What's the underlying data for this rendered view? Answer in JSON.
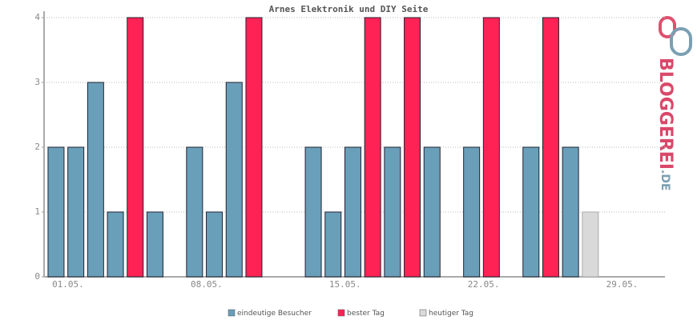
{
  "chart_data": {
    "type": "bar",
    "title": "Arnes Elektronik und DIY Seite",
    "categories": [
      "01.05.",
      null,
      null,
      null,
      null,
      null,
      null,
      "08.05.",
      null,
      null,
      null,
      null,
      null,
      null,
      "15.05.",
      null,
      null,
      null,
      null,
      null,
      null,
      "22.05.",
      null,
      null,
      null,
      null,
      null,
      null,
      "29.05.",
      null,
      null
    ],
    "series": [
      {
        "name": "eindeutige Besucher",
        "color": "#6a9fb9",
        "values": [
          2,
          2,
          3,
          1,
          null,
          1,
          0,
          2,
          1,
          3,
          null,
          0,
          0,
          2,
          1,
          2,
          null,
          2,
          null,
          2,
          0,
          2,
          null,
          0,
          2,
          null,
          2,
          null,
          0,
          0,
          0
        ]
      },
      {
        "name": "bester Tag",
        "color": "#ff2255",
        "values": [
          null,
          null,
          null,
          null,
          4,
          null,
          null,
          null,
          null,
          null,
          4,
          null,
          null,
          null,
          null,
          null,
          4,
          null,
          4,
          null,
          null,
          null,
          4,
          null,
          null,
          4,
          null,
          null,
          null,
          null,
          null
        ]
      },
      {
        "name": "heutiger Tag",
        "color": "#d9d9d9",
        "values": [
          null,
          null,
          null,
          null,
          null,
          null,
          null,
          null,
          null,
          null,
          null,
          null,
          null,
          null,
          null,
          null,
          null,
          null,
          null,
          null,
          null,
          null,
          null,
          null,
          null,
          null,
          null,
          1,
          null,
          null,
          null
        ]
      }
    ],
    "ylim": [
      0,
      4
    ],
    "yticks": [
      0,
      1,
      2,
      3,
      4
    ],
    "grid": true
  },
  "logo": {
    "name": "BLOGGEREI",
    "suffix": ".DE"
  }
}
